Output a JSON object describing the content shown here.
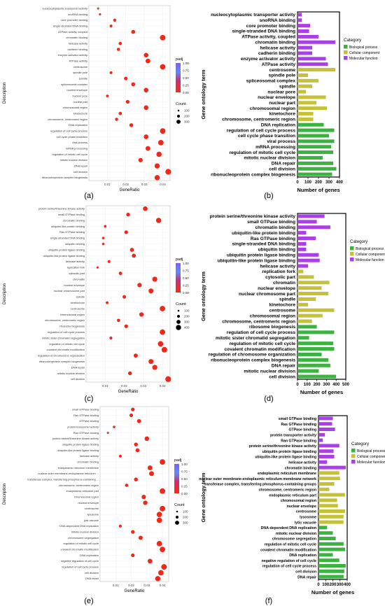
{
  "panels": [
    {
      "label": "(a)",
      "type": "bubble",
      "ylabel": "Description",
      "xlabel": "GeneRatio",
      "xlim": [
        0.0,
        0.044
      ],
      "xticks": [
        0.01,
        0.02,
        0.03,
        0.04
      ],
      "padj_title": "padj",
      "padj_ticks": [
        "1.00",
        "0.75",
        "0.50",
        "0.25",
        "0.00"
      ],
      "count_title": "Count",
      "count_ticks": [
        100,
        200,
        300
      ],
      "terms": [
        "nucleocytoplasmic transporter activity",
        "snoRNA binding",
        "core promoter binding",
        "single-stranded DNA binding",
        "ATPase activity, coupled",
        "chromatin binding",
        "helicase activity",
        "cadherin binding",
        "enzyme activator activity",
        "ATPase activity",
        "centrosome",
        "spindle pole",
        "spindle",
        "spliceosomal complex",
        "nuclear envelope",
        "nuclear pore",
        "nuclear part",
        "chromosomal region",
        "kinetochore",
        "chromosome, centromeric region",
        "DNA replication",
        "regulation of cell cycle process",
        "cell cycle phase transition",
        "viral process",
        "mRNA processing",
        "regulation of mitotic cell cycle",
        "mitotic nuclear division",
        "DNA repair",
        "cell division",
        "ribonucleoprotein complex biogenesis"
      ],
      "ratio": [
        0.005,
        0.006,
        0.014,
        0.012,
        0.024,
        0.04,
        0.017,
        0.016,
        0.031,
        0.032,
        0.04,
        0.012,
        0.02,
        0.024,
        0.031,
        0.01,
        0.021,
        0.031,
        0.017,
        0.015,
        0.023,
        0.04,
        0.031,
        0.039,
        0.032,
        0.038,
        0.028,
        0.037,
        0.043,
        0.037
      ]
    },
    {
      "label": "(b)",
      "type": "hbar",
      "ylabel": "Gene ontology term",
      "xlabel": "Number of genes",
      "xlim": [
        0,
        400
      ],
      "xticks": [
        0,
        100,
        200,
        300,
        400
      ],
      "legend_title": "Category",
      "legend": [
        {
          "name": "Biological process",
          "color": "#3cb340"
        },
        {
          "name": "Cellular component",
          "color": "#c5c23a"
        },
        {
          "name": "Molecular function",
          "color": "#a93fe6"
        }
      ],
      "terms": [
        "nucleocytoplasmic transporter activity",
        "snoRNA binding",
        "core promoter binding",
        "single-stranded DNA binding",
        "ATPase activity, coupled",
        "chromatin binding",
        "helicase activity",
        "cadherin binding",
        "enzyme activator activity",
        "ATPase activity",
        "centrosome",
        "spindle pole",
        "spliceosomal complex",
        "spindle",
        "nuclear pore",
        "nuclear envelope",
        "nuclear part",
        "chromosomal region",
        "kinetochore",
        "chromosome, centromeric region",
        "DNA replication",
        "regulation of cell cycle process",
        "cell cycle phase transition",
        "viral process",
        "mRNA processing",
        "regulation of mitotic cell cycle",
        "mitotic nuclear division",
        "DNA repair",
        "cell division",
        "ribonucleoprotein complex biogenesis"
      ],
      "values": [
        40,
        40,
        120,
        110,
        200,
        360,
        140,
        140,
        270,
        290,
        360,
        100,
        200,
        140,
        80,
        270,
        180,
        280,
        150,
        150,
        250,
        350,
        300,
        350,
        320,
        340,
        240,
        340,
        370,
        330
      ],
      "cats": [
        2,
        2,
        2,
        2,
        2,
        2,
        2,
        2,
        2,
        2,
        1,
        1,
        1,
        1,
        1,
        1,
        1,
        1,
        1,
        1,
        0,
        0,
        0,
        0,
        0,
        0,
        0,
        0,
        0,
        0
      ]
    },
    {
      "label": "(c)",
      "type": "bubble",
      "ylabel": "Description",
      "xlabel": "GeneRatio",
      "xlim": [
        0.0,
        0.044
      ],
      "xticks": [
        0.01,
        0.02,
        0.03,
        0.04
      ],
      "padj_title": "padj",
      "padj_ticks": [
        "1.00",
        "0.75",
        "0.50",
        "0.25",
        "0.00"
      ],
      "count_title": "Count",
      "count_ticks": [
        100,
        200,
        300,
        400
      ],
      "terms": [
        "protein serine/threonine kinase activity",
        "small GTPase binding",
        "chromatin binding",
        "ubiquitin-like protein binding",
        "Ras GTPase binding",
        "single-stranded DNA binding",
        "ubiquitin binding",
        "ubiquitin protein ligase binding",
        "ubiquitin-like protein ligase binding",
        "helicase activity",
        "replication fork",
        "cytosolic part",
        "chromatin",
        "nuclear envelope",
        "nuclear chromosome part",
        "spindle",
        "kinetochore",
        "centrosome",
        "chromosomal region",
        "chromosome, centromeric region",
        "ribosome biogenesis",
        "regulation of cell cycle process",
        "mitotic sister chromatid segregation",
        "regulation of mitotic cell cycle",
        "covalent chromatin modification",
        "regulation of chromosome organization",
        "ribonucleoprotein complex biogenesis",
        "DNA repair",
        "mitotic nuclear division",
        "cell division"
      ],
      "ratio": [
        0.031,
        0.022,
        0.038,
        0.01,
        0.021,
        0.009,
        0.009,
        0.024,
        0.025,
        0.012,
        0.006,
        0.018,
        0.036,
        0.028,
        0.034,
        0.02,
        0.011,
        0.04,
        0.029,
        0.017,
        0.021,
        0.04,
        0.013,
        0.039,
        0.041,
        0.026,
        0.034,
        0.036,
        0.023,
        0.043
      ]
    },
    {
      "label": "(d)",
      "type": "hbar",
      "ylabel": "Gene ontology term",
      "xlabel": "Number of genes",
      "xlim": [
        0,
        500
      ],
      "xticks": [
        0,
        100,
        200,
        300,
        400,
        500
      ],
      "legend_title": "Category",
      "legend": [
        {
          "name": "Biological process",
          "color": "#3cb340"
        },
        {
          "name": "Cellular component",
          "color": "#c5c23a"
        },
        {
          "name": "Molecular function",
          "color": "#a93fe6"
        }
      ],
      "terms": [
        "protein serine/threonine kinase activity",
        "small GTPase binding",
        "chromatin binding",
        "ubiquitin-like protein binding",
        "Ras GTPase binding",
        "single-stranded DNA binding",
        "ubiquitin binding",
        "ubiquitin protein ligase binding",
        "ubiquitin-like protein ligase binding",
        "helicase activity",
        "replication fork",
        "cytosolic part",
        "chromatin",
        "nuclear envelope",
        "nuclear chromosome part",
        "spindle",
        "kinetochore",
        "centrosome",
        "chromosomal region",
        "chromosome, centromeric region",
        "ribosome biogenesis",
        "regulation of cell cycle process",
        "mitotic sister chromatid segregation",
        "regulation of mitotic cell cycle",
        "covalent chromatin modification",
        "regulation of chromosome organization",
        "ribonucleoprotein complex biogenesis",
        "DNA repair",
        "mitotic nuclear division",
        "cell division"
      ],
      "values": [
        280,
        200,
        340,
        90,
        190,
        90,
        90,
        220,
        230,
        110,
        60,
        170,
        330,
        250,
        320,
        190,
        110,
        380,
        260,
        150,
        200,
        380,
        120,
        370,
        380,
        250,
        320,
        340,
        220,
        400
      ],
      "cats": [
        2,
        2,
        2,
        2,
        2,
        2,
        2,
        2,
        2,
        2,
        1,
        1,
        1,
        1,
        1,
        1,
        1,
        1,
        1,
        1,
        0,
        0,
        0,
        0,
        0,
        0,
        0,
        0,
        0,
        0
      ]
    },
    {
      "label": "(e)",
      "type": "bubble",
      "ylabel": "Description",
      "xlabel": "GeneRatio",
      "xlim": [
        0.0,
        0.044
      ],
      "xticks": [
        0.01,
        0.02,
        0.03,
        0.04
      ],
      "padj_title": "padj",
      "padj_ticks": [
        "1.00",
        "0.75",
        "0.50",
        "0.25",
        "0.00"
      ],
      "count_title": "Count",
      "count_ticks": [
        100,
        200,
        300
      ],
      "terms": [
        "small GTPase binding",
        "Ras GTPase binding",
        "GTPase binding",
        "protein transporter activity",
        "Ran GTPase binding",
        "protein serine/threonine kinase activity",
        "ubiquitin protein ligase binding",
        "ubiquitin-like protein ligase binding",
        "helicase activity",
        "chromatin binding",
        "endoplasmic reticulum membrane",
        "nuclear outer membrane-endoplasmic reticulum ...",
        "transferase complex, transferring phosphorus-containing ...",
        "chromosome, centromeric region",
        "endoplasmic reticulum part",
        "chromosomal region",
        "nuclear envelope",
        "centrosome",
        "lysosome",
        "lytic vacuole",
        "DNA-dependent DNA replication",
        "mitotic nuclear division",
        "chromosome segregation",
        "regulation of mitotic cell cycle",
        "covalent chromatin modification",
        "DNA replication",
        "negative regulation of cell cycle",
        "regulation of cell cycle process",
        "cell division",
        "DNA repair"
      ],
      "ratio": [
        0.021,
        0.02,
        0.025,
        0.009,
        0.005,
        0.03,
        0.023,
        0.024,
        0.013,
        0.04,
        0.032,
        0.033,
        0.023,
        0.017,
        0.04,
        0.028,
        0.029,
        0.04,
        0.038,
        0.038,
        0.013,
        0.021,
        0.026,
        0.038,
        0.04,
        0.021,
        0.032,
        0.041,
        0.039,
        0.037
      ]
    },
    {
      "label": "(f)",
      "type": "hbar",
      "ylabel": "Gene ontology term",
      "xlabel": "Number of genes",
      "xlim": [
        0,
        400
      ],
      "xticks": [
        0,
        100,
        200,
        300,
        400
      ],
      "legend_title": "Category",
      "legend": [
        {
          "name": "Biological process",
          "color": "#3cb340"
        },
        {
          "name": "Cellular component",
          "color": "#c5c23a"
        },
        {
          "name": "Molecular function",
          "color": "#a93fe6"
        }
      ],
      "terms": [
        "small GTPase binding",
        "Ras GTPase binding",
        "GTPase binding",
        "protein transporter activity",
        "Ran GTPase binding",
        "protein serine/threonine kinase activity",
        "ubiquitin protein ligase binding",
        "ubiquitin-like protein ligase binding",
        "helicase activity",
        "chromatin binding",
        "endoplasmic reticulum membrane",
        "nuclear outer membrane-endoplasmic reticulum membrane network",
        "transferase complex, transferring phosphorus-containing groups",
        "chromosome, centromeric region",
        "endoplasmic reticulum part",
        "chromosomal region",
        "nuclear envelope",
        "centrosome",
        "lysosome",
        "lytic vacuole",
        "DNA-dependent DNA replication",
        "mitotic nuclear division",
        "chromosome segregation",
        "regulation of mitotic cell cycle",
        "covalent chromatin modification",
        "DNA replication",
        "negative regulation of cell cycle",
        "regulation of cell cycle process",
        "cell division",
        "DNA repair"
      ],
      "values": [
        200,
        190,
        230,
        90,
        60,
        290,
        210,
        220,
        120,
        380,
        290,
        300,
        220,
        150,
        370,
        260,
        270,
        370,
        350,
        350,
        120,
        200,
        240,
        350,
        370,
        200,
        290,
        380,
        360,
        350
      ],
      "cats": [
        2,
        2,
        2,
        2,
        2,
        2,
        2,
        2,
        2,
        2,
        1,
        1,
        1,
        1,
        1,
        1,
        1,
        1,
        1,
        1,
        0,
        0,
        0,
        0,
        0,
        0,
        0,
        0,
        0,
        0
      ]
    }
  ],
  "chart_data": [
    {
      "type": "scatter",
      "xlabel": "GeneRatio",
      "ylabel": "Description",
      "panel": "(a)"
    },
    {
      "type": "bar",
      "xlabel": "Number of genes",
      "ylabel": "Gene ontology term",
      "panel": "(b)"
    },
    {
      "type": "scatter",
      "xlabel": "GeneRatio",
      "ylabel": "Description",
      "panel": "(c)"
    },
    {
      "type": "bar",
      "xlabel": "Number of genes",
      "ylabel": "Gene ontology term",
      "panel": "(d)"
    },
    {
      "type": "scatter",
      "xlabel": "GeneRatio",
      "ylabel": "Description",
      "panel": "(e)"
    },
    {
      "type": "bar",
      "xlabel": "Number of genes",
      "ylabel": "Gene ontology term",
      "panel": "(f)"
    }
  ]
}
